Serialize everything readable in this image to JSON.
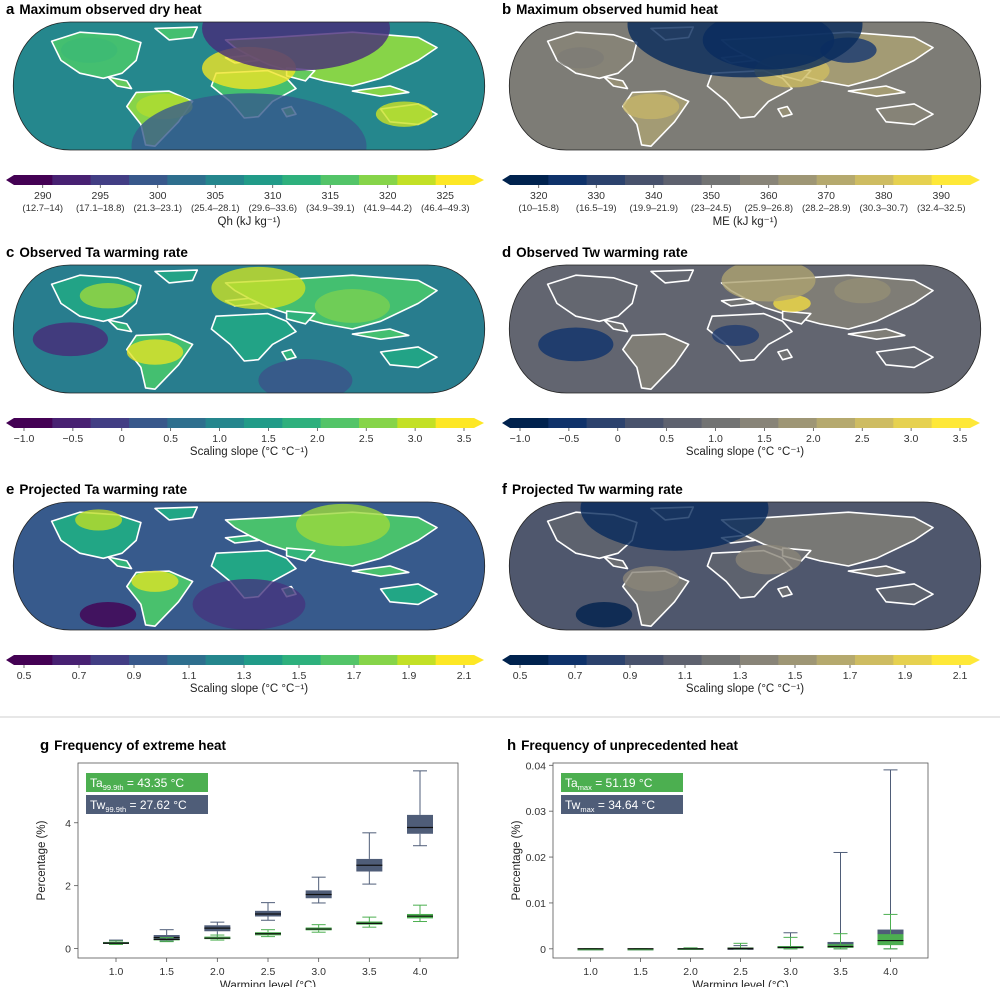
{
  "colors": {
    "viridis": [
      "#440154",
      "#482475",
      "#414487",
      "#355f8d",
      "#2a788e",
      "#21918c",
      "#22a884",
      "#44bf70",
      "#7ad151",
      "#bddf26",
      "#fde725"
    ],
    "cividis": [
      "#00224e",
      "#123570",
      "#3b496c",
      "#575d6d",
      "#707173",
      "#8a8678",
      "#a59c74",
      "#c3b369",
      "#e1cc55",
      "#fee838"
    ],
    "ta_green": "#4caf50",
    "tw_slate": "#4f5d78"
  },
  "maps": [
    {
      "letter": "a",
      "title": "Maximum observed dry heat",
      "cmap": "viridis",
      "pattern": "dry_heat",
      "colorbar": {
        "ticks": [
          "290",
          "295",
          "300",
          "305",
          "310",
          "315",
          "320",
          "325"
        ],
        "subticks": [
          "(12.7–14)",
          "(17.1–18.8)",
          "(21.3–23.1)",
          "(25.4–28.1)",
          "(29.6–33.6)",
          "(34.9–39.1)",
          "(41.9–44.2)",
          "(46.4–49.3)"
        ],
        "label": "Qh (kJ kg⁻¹)"
      }
    },
    {
      "letter": "b",
      "title": "Maximum observed humid heat",
      "cmap": "cividis",
      "pattern": "humid_heat",
      "colorbar": {
        "ticks": [
          "320",
          "330",
          "340",
          "350",
          "360",
          "370",
          "380",
          "390"
        ],
        "subticks": [
          "(10–15.8)",
          "(16.5–19)",
          "(19.9–21.9)",
          "(23–24.5)",
          "(25.9–26.8)",
          "(28.2–28.9)",
          "(30.3–30.7)",
          "(32.4–32.5)"
        ],
        "label": "ME (kJ kg⁻¹)"
      }
    },
    {
      "letter": "c",
      "title": "Observed Ta warming rate",
      "cmap": "viridis",
      "pattern": "obs_ta",
      "colorbar": {
        "ticks": [
          "−1.0",
          "−0.5",
          "0",
          "0.5",
          "1.0",
          "1.5",
          "2.0",
          "2.5",
          "3.0",
          "3.5"
        ],
        "subticks": [],
        "label": "Scaling slope (°C °C⁻¹)"
      }
    },
    {
      "letter": "d",
      "title": "Observed Tw warming rate",
      "cmap": "cividis",
      "pattern": "obs_tw",
      "colorbar": {
        "ticks": [
          "−1.0",
          "−0.5",
          "0",
          "0.5",
          "1.0",
          "1.5",
          "2.0",
          "2.5",
          "3.0",
          "3.5"
        ],
        "subticks": [],
        "label": "Scaling slope (°C °C⁻¹)"
      }
    },
    {
      "letter": "e",
      "title": "Projected Ta warming rate",
      "cmap": "viridis",
      "pattern": "proj_ta",
      "colorbar": {
        "ticks": [
          "0.5",
          "0.7",
          "0.9",
          "1.1",
          "1.3",
          "1.5",
          "1.7",
          "1.9",
          "2.1"
        ],
        "subticks": [],
        "label": "Scaling slope (°C °C⁻¹)"
      }
    },
    {
      "letter": "f",
      "title": "Projected Tw warming rate",
      "cmap": "cividis",
      "pattern": "proj_tw",
      "colorbar": {
        "ticks": [
          "0.5",
          "0.7",
          "0.9",
          "1.1",
          "1.3",
          "1.5",
          "1.7",
          "1.9",
          "2.1"
        ],
        "subticks": [],
        "label": "Scaling slope (°C °C⁻¹)"
      }
    }
  ],
  "chart_data": [
    {
      "type": "box",
      "letter": "g",
      "title": "Frequency of extreme heat",
      "xlabel": "Warming level (°C)",
      "ylabel": "Percentage (%)",
      "categories": [
        "1.0",
        "1.5",
        "2.0",
        "2.5",
        "3.0",
        "3.5",
        "4.0"
      ],
      "ylim": [
        -0.3,
        5.9
      ],
      "yticks": [
        0,
        2,
        4
      ],
      "ytick_labels": [
        "0",
        "2",
        "4"
      ],
      "legend": [
        {
          "main": "Ta",
          "sub": "99.9th",
          "value": " = 43.35 °C",
          "color": "#4caf50"
        },
        {
          "main": "Tw",
          "sub": "99.9th",
          "value": " = 27.62 °C",
          "color": "#4f5d78"
        }
      ],
      "series": [
        {
          "name": "Tw",
          "color": "#4f5d78",
          "boxes": [
            {
              "min": 0.13,
              "q1": 0.15,
              "median": 0.18,
              "q3": 0.21,
              "max": 0.27
            },
            {
              "min": 0.24,
              "q1": 0.28,
              "median": 0.35,
              "q3": 0.43,
              "max": 0.6
            },
            {
              "min": 0.36,
              "q1": 0.55,
              "median": 0.65,
              "q3": 0.74,
              "max": 0.84
            },
            {
              "min": 0.9,
              "q1": 1.02,
              "median": 1.1,
              "q3": 1.2,
              "max": 1.46
            },
            {
              "min": 1.45,
              "q1": 1.6,
              "median": 1.72,
              "q3": 1.85,
              "max": 2.27
            },
            {
              "min": 2.05,
              "q1": 2.45,
              "median": 2.65,
              "q3": 2.85,
              "max": 3.68
            },
            {
              "min": 3.27,
              "q1": 3.65,
              "median": 3.85,
              "q3": 4.25,
              "max": 5.65
            }
          ]
        },
        {
          "name": "Ta",
          "color": "#4caf50",
          "boxes": [
            {
              "min": 0.13,
              "q1": 0.15,
              "median": 0.17,
              "q3": 0.2,
              "max": 0.24
            },
            {
              "min": 0.22,
              "q1": 0.26,
              "median": 0.29,
              "q3": 0.31,
              "max": 0.35
            },
            {
              "min": 0.27,
              "q1": 0.3,
              "median": 0.33,
              "q3": 0.38,
              "max": 0.43
            },
            {
              "min": 0.38,
              "q1": 0.42,
              "median": 0.47,
              "q3": 0.52,
              "max": 0.6
            },
            {
              "min": 0.52,
              "q1": 0.58,
              "median": 0.62,
              "q3": 0.67,
              "max": 0.76
            },
            {
              "min": 0.68,
              "q1": 0.76,
              "median": 0.8,
              "q3": 0.86,
              "max": 1.0
            },
            {
              "min": 0.86,
              "q1": 0.96,
              "median": 1.03,
              "q3": 1.1,
              "max": 1.38
            }
          ]
        }
      ]
    },
    {
      "type": "box",
      "letter": "h",
      "title": "Frequency of unprecedented heat",
      "xlabel": "Warming level (°C)",
      "ylabel": "Percentage (%)",
      "categories": [
        "1.0",
        "1.5",
        "2.0",
        "2.5",
        "3.0",
        "3.5",
        "4.0"
      ],
      "ylim": [
        -0.002,
        0.0405
      ],
      "yticks": [
        0,
        0.01,
        0.02,
        0.03,
        0.04
      ],
      "ytick_labels": [
        "0",
        "0.01",
        "0.02",
        "0.03",
        "0.04"
      ],
      "legend": [
        {
          "main": "Ta",
          "sub": "max",
          "value": " = 51.19 °C",
          "color": "#4caf50"
        },
        {
          "main": "Tw",
          "sub": "max",
          "value": " = 34.64 °C",
          "color": "#4f5d78"
        }
      ],
      "series": [
        {
          "name": "Tw",
          "color": "#4f5d78",
          "boxes": [
            {
              "min": 0,
              "q1": 0,
              "median": 0,
              "q3": 0,
              "max": 5e-05
            },
            {
              "min": 0,
              "q1": 0,
              "median": 0,
              "q3": 0,
              "max": 5e-05
            },
            {
              "min": 0,
              "q1": 0,
              "median": 0,
              "q3": 0.0001,
              "max": 0.0002
            },
            {
              "min": 0,
              "q1": 0,
              "median": 0,
              "q3": 0.0001,
              "max": 0.0007
            },
            {
              "min": 0,
              "q1": 0.0001,
              "median": 0.0003,
              "q3": 0.0006,
              "max": 0.0035
            },
            {
              "min": 0,
              "q1": 0.0003,
              "median": 0.0008,
              "q3": 0.0015,
              "max": 0.021
            },
            {
              "min": 0,
              "q1": 0.0011,
              "median": 0.0022,
              "q3": 0.0042,
              "max": 0.039
            }
          ]
        },
        {
          "name": "Ta",
          "color": "#4caf50",
          "boxes": [
            {
              "min": 0,
              "q1": 0,
              "median": 0,
              "q3": 0,
              "max": 5e-05
            },
            {
              "min": 0,
              "q1": 0,
              "median": 0,
              "q3": 0,
              "max": 5e-05
            },
            {
              "min": 0,
              "q1": 0,
              "median": 0,
              "q3": 0.0001,
              "max": 0.0002
            },
            {
              "min": 0,
              "q1": 0,
              "median": 0.0001,
              "q3": 0.0003,
              "max": 0.0012
            },
            {
              "min": 0,
              "q1": 0.0001,
              "median": 0.0003,
              "q3": 0.0006,
              "max": 0.0025
            },
            {
              "min": 0,
              "q1": 0.0002,
              "median": 0.0005,
              "q3": 0.001,
              "max": 0.0033
            },
            {
              "min": 0,
              "q1": 0.0008,
              "median": 0.0018,
              "q3": 0.0032,
              "max": 0.0075
            }
          ]
        }
      ]
    }
  ]
}
